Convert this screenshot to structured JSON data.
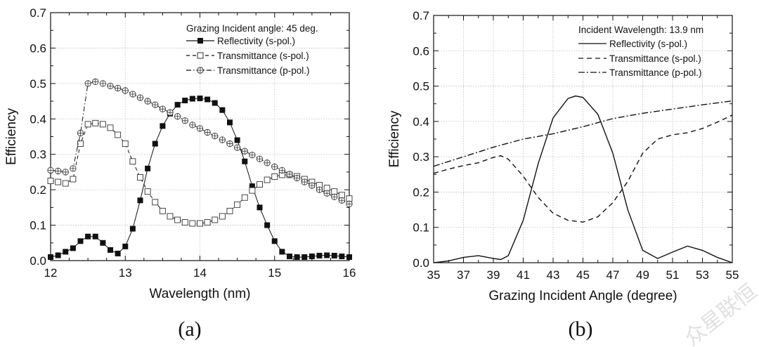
{
  "chart_data": [
    {
      "type": "line",
      "panel_label": "(a)",
      "xlabel": "Wavelength (nm)",
      "ylabel": "Efficiency",
      "xlim": [
        12,
        16
      ],
      "ylim": [
        0,
        0.7
      ],
      "xticks": [
        "12",
        "13",
        "14",
        "15",
        "16"
      ],
      "yticks": [
        "0.0",
        "0.1",
        "0.2",
        "0.3",
        "0.4",
        "0.5",
        "0.6",
        "0.7"
      ],
      "grid": true,
      "legend_title": "Grazing Incident angle: 45 deg.",
      "legend_position": "top-right",
      "x": [
        12.0,
        12.1,
        12.2,
        12.3,
        12.4,
        12.5,
        12.6,
        12.7,
        12.8,
        12.9,
        13.0,
        13.1,
        13.2,
        13.3,
        13.4,
        13.5,
        13.6,
        13.7,
        13.8,
        13.9,
        14.0,
        14.1,
        14.2,
        14.3,
        14.4,
        14.5,
        14.6,
        14.7,
        14.8,
        14.9,
        15.0,
        15.1,
        15.2,
        15.3,
        15.4,
        15.5,
        15.6,
        15.7,
        15.8,
        15.9,
        16.0
      ],
      "series": [
        {
          "name": "Reflectivity (s-pol.)",
          "style": "solid-filled-square",
          "values": [
            0.01,
            0.015,
            0.025,
            0.035,
            0.055,
            0.068,
            0.068,
            0.05,
            0.03,
            0.02,
            0.04,
            0.09,
            0.17,
            0.26,
            0.33,
            0.38,
            0.415,
            0.44,
            0.452,
            0.457,
            0.458,
            0.455,
            0.445,
            0.425,
            0.39,
            0.34,
            0.28,
            0.21,
            0.15,
            0.1,
            0.055,
            0.025,
            0.012,
            0.01,
            0.01,
            0.012,
            0.014,
            0.015,
            0.014,
            0.012,
            0.01
          ]
        },
        {
          "name": "Transmittance (s-pol.)",
          "style": "dash-open-square",
          "values": [
            0.225,
            0.222,
            0.218,
            0.23,
            0.33,
            0.385,
            0.388,
            0.385,
            0.375,
            0.355,
            0.33,
            0.28,
            0.235,
            0.195,
            0.165,
            0.14,
            0.125,
            0.115,
            0.108,
            0.105,
            0.105,
            0.108,
            0.115,
            0.125,
            0.14,
            0.158,
            0.178,
            0.198,
            0.215,
            0.228,
            0.237,
            0.242,
            0.242,
            0.238,
            0.23,
            0.222,
            0.213,
            0.205,
            0.195,
            0.185,
            0.175
          ]
        },
        {
          "name": "Transmittance (p-pol.)",
          "style": "dashdot-circle-plus",
          "values": [
            0.255,
            0.253,
            0.25,
            0.26,
            0.36,
            0.5,
            0.505,
            0.5,
            0.493,
            0.487,
            0.48,
            0.47,
            0.46,
            0.45,
            0.44,
            0.428,
            0.418,
            0.407,
            0.395,
            0.383,
            0.373,
            0.362,
            0.352,
            0.341,
            0.33,
            0.319,
            0.309,
            0.298,
            0.287,
            0.276,
            0.265,
            0.255,
            0.244,
            0.233,
            0.222,
            0.212,
            0.2,
            0.19,
            0.18,
            0.17,
            0.16
          ]
        }
      ]
    },
    {
      "type": "line",
      "panel_label": "(b)",
      "xlabel": "Grazing Incident Angle (degree)",
      "ylabel": "Efficiency",
      "xlim": [
        35,
        55
      ],
      "ylim": [
        0,
        0.7
      ],
      "xticks": [
        "35",
        "37",
        "39",
        "41",
        "43",
        "45",
        "47",
        "49",
        "51",
        "53",
        "55"
      ],
      "yticks": [
        "0.0",
        "0.1",
        "0.2",
        "0.3",
        "0.4",
        "0.5",
        "0.6",
        "0.7"
      ],
      "grid": true,
      "legend_title": "Incident Wavelength: 13.9 nm",
      "legend_position": "top-right",
      "series": [
        {
          "name": "Reflectivity (s-pol.)",
          "style": "solid",
          "x": [
            35,
            36,
            37,
            38,
            39,
            39.5,
            40,
            41,
            42,
            43,
            44,
            44.5,
            45,
            46,
            47,
            48,
            49,
            50,
            51,
            52,
            53,
            54,
            55
          ],
          "values": [
            0,
            0.005,
            0.015,
            0.02,
            0.012,
            0.009,
            0.02,
            0.12,
            0.28,
            0.41,
            0.465,
            0.472,
            0.468,
            0.42,
            0.31,
            0.15,
            0.035,
            0.012,
            0.03,
            0.047,
            0.035,
            0.015,
            0
          ]
        },
        {
          "name": "Transmittance (s-pol.)",
          "style": "dash",
          "x": [
            35,
            36,
            37,
            38,
            39,
            39.5,
            40,
            41,
            42,
            43,
            44,
            45,
            46,
            47,
            48,
            49,
            50,
            51,
            52,
            53,
            54,
            55
          ],
          "values": [
            0.253,
            0.265,
            0.275,
            0.283,
            0.298,
            0.303,
            0.293,
            0.245,
            0.185,
            0.14,
            0.12,
            0.115,
            0.13,
            0.17,
            0.23,
            0.31,
            0.35,
            0.362,
            0.368,
            0.38,
            0.398,
            0.418
          ]
        },
        {
          "name": "Transmittance (p-pol.)",
          "style": "dashdot",
          "x": [
            35,
            37,
            39,
            41,
            43,
            45,
            47,
            49,
            51,
            53,
            55
          ],
          "values": [
            0.273,
            0.3,
            0.327,
            0.35,
            0.365,
            0.385,
            0.408,
            0.423,
            0.435,
            0.447,
            0.458
          ]
        }
      ]
    }
  ],
  "watermark": "众星联恒"
}
